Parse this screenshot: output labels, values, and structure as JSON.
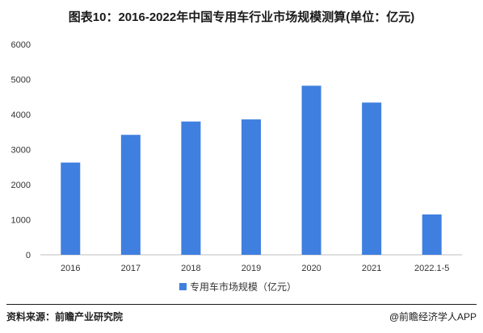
{
  "chart_data": {
    "type": "bar",
    "title": "图表10：2016-2022年中国专用车行业市场规模测算(单位：亿元)",
    "categories": [
      "2016",
      "2017",
      "2018",
      "2019",
      "2020",
      "2021",
      "2022.1-5"
    ],
    "series": [
      {
        "name": "专用车市场规模（亿元）",
        "values": [
          2630,
          3420,
          3800,
          3860,
          4820,
          4340,
          1150
        ]
      }
    ],
    "ylim": [
      0,
      6000
    ],
    "yticks": [
      0,
      1000,
      2000,
      3000,
      4000,
      5000,
      6000
    ],
    "grid": false,
    "legend_position": "bottom-center",
    "bar_color": "#3f7fe0"
  },
  "footer": {
    "source": "资料来源：前瞻产业研究院",
    "brand_at": "@",
    "brand": "前瞻经济学人APP"
  },
  "colors": {
    "bar": "#3f7fe0",
    "axis": "#bfbfbf",
    "text": "#333333"
  }
}
